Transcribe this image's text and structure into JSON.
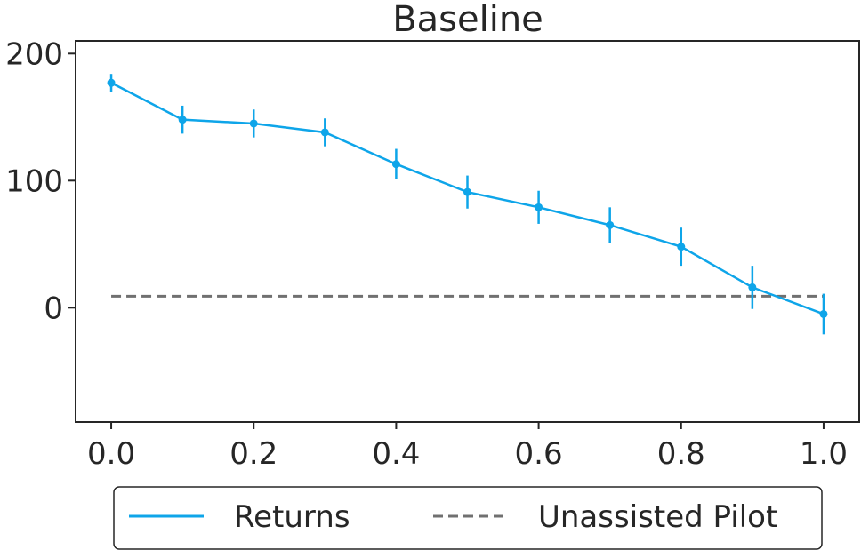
{
  "chart_data": {
    "type": "line",
    "title": "Baseline",
    "xlabel": "",
    "ylabel": "",
    "xlim": [
      -0.05,
      1.05
    ],
    "ylim": [
      -90,
      210
    ],
    "x_ticks": [
      0.0,
      0.2,
      0.4,
      0.6,
      0.8,
      1.0
    ],
    "x_tick_labels": [
      "0.0",
      "0.2",
      "0.4",
      "0.6",
      "0.8",
      "1.0"
    ],
    "y_ticks": [
      0,
      100,
      200
    ],
    "y_tick_labels": [
      "0",
      "100",
      "200"
    ],
    "grid": false,
    "legend_position": "bottom, outside plot",
    "series": [
      {
        "name": "Returns",
        "color": "#0ea5e9",
        "style": "solid line with markers and error bars",
        "x": [
          0.0,
          0.1,
          0.2,
          0.3,
          0.4,
          0.5,
          0.6,
          0.7,
          0.8,
          0.9,
          1.0
        ],
        "y": [
          177,
          148,
          145,
          138,
          113,
          91,
          79,
          65,
          48,
          16,
          -5
        ],
        "error": [
          7,
          11,
          11,
          11,
          12,
          13,
          13,
          14,
          15,
          17,
          16
        ]
      },
      {
        "name": "Unassisted Pilot",
        "color": "#707070",
        "style": "dashed line",
        "x": [
          0.0,
          1.0
        ],
        "y": [
          9,
          9
        ]
      }
    ]
  }
}
